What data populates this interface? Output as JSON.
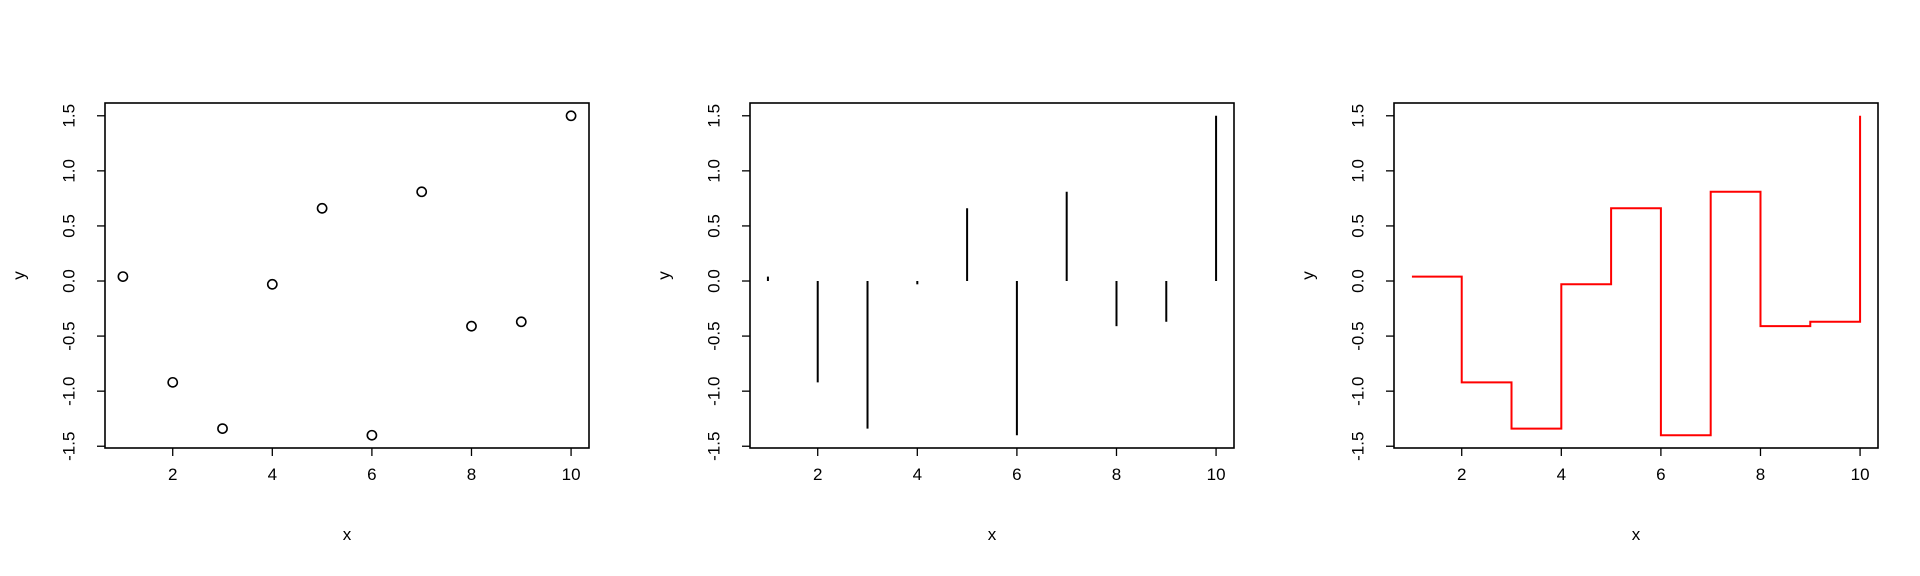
{
  "chart_data": [
    {
      "type": "scatter",
      "marker": "open-circle",
      "color": "#000000",
      "x": [
        1,
        2,
        3,
        4,
        5,
        6,
        7,
        8,
        9,
        10
      ],
      "y": [
        0.04,
        -0.92,
        -1.34,
        -0.03,
        0.66,
        -1.4,
        0.81,
        -0.41,
        -0.37,
        1.5
      ],
      "xlabel": "x",
      "ylabel": "y",
      "xticks": [
        2,
        4,
        6,
        8,
        10
      ],
      "yticks": [
        -1.5,
        -1.0,
        -0.5,
        0.0,
        0.5,
        1.0,
        1.5
      ],
      "xlim": [
        0.64,
        10.36
      ],
      "ylim": [
        -1.516,
        1.616
      ],
      "grid": false,
      "legend": "none"
    },
    {
      "type": "bar",
      "style": "histogram-lines",
      "color": "#000000",
      "x": [
        1,
        2,
        3,
        4,
        5,
        6,
        7,
        8,
        9,
        10
      ],
      "y": [
        0.04,
        -0.92,
        -1.34,
        -0.03,
        0.66,
        -1.4,
        0.81,
        -0.41,
        -0.37,
        1.5
      ],
      "xlabel": "x",
      "ylabel": "y",
      "xticks": [
        2,
        4,
        6,
        8,
        10
      ],
      "yticks": [
        -1.5,
        -1.0,
        -0.5,
        0.0,
        0.5,
        1.0,
        1.5
      ],
      "xlim": [
        0.64,
        10.36
      ],
      "ylim": [
        -1.516,
        1.616
      ],
      "grid": false,
      "legend": "none"
    },
    {
      "type": "line",
      "style": "step",
      "color": "#ff0000",
      "x": [
        1,
        2,
        3,
        4,
        5,
        6,
        7,
        8,
        9,
        10
      ],
      "y": [
        0.04,
        -0.92,
        -1.34,
        -0.03,
        0.66,
        -1.4,
        0.81,
        -0.41,
        -0.37,
        1.5
      ],
      "xlabel": "x",
      "ylabel": "y",
      "xticks": [
        2,
        4,
        6,
        8,
        10
      ],
      "yticks": [
        -1.5,
        -1.0,
        -0.5,
        0.0,
        0.5,
        1.0,
        1.5
      ],
      "xlim": [
        0.64,
        10.36
      ],
      "ylim": [
        -1.516,
        1.616
      ],
      "grid": false,
      "legend": "none"
    }
  ]
}
